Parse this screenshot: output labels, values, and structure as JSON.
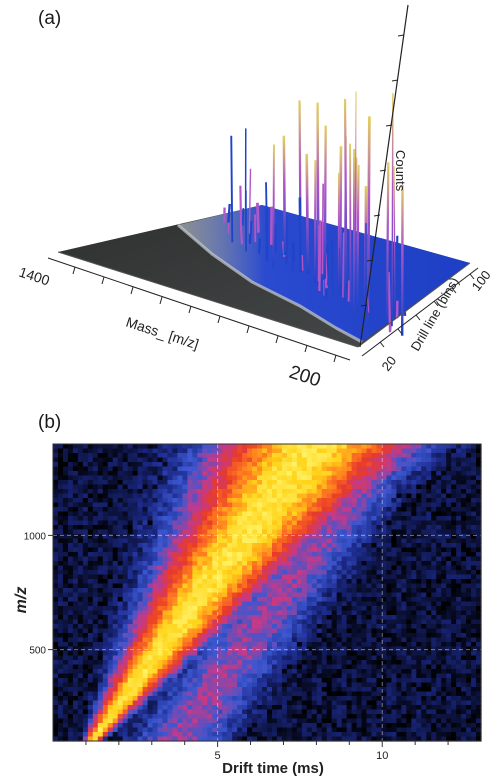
{
  "panels": {
    "a_label": "(a)",
    "b_label": "(b)"
  },
  "chart_data": [
    {
      "type": "surface3d",
      "panel": "(a)",
      "x_axis": {
        "label": "Mass_ [m/z]",
        "ticks": [
          1400,
          200
        ]
      },
      "y_axis": {
        "label": "Drill line (bins)",
        "ticks": [
          20,
          100
        ]
      },
      "z_axis": {
        "label": "Counts",
        "ticks": []
      },
      "colors": {
        "floor": "#3a3c3c",
        "band": "#1f44c8",
        "peak": "#b256c8",
        "tip": "#e2d060"
      }
    },
    {
      "type": "heatmap",
      "panel": "(b)",
      "xlabel": "Drift time (ms)",
      "ylabel": "m/z",
      "xticks": [
        5,
        10
      ],
      "yticks": [
        500,
        1000
      ],
      "xlim": [
        0,
        13
      ],
      "ylim": [
        100,
        1400
      ],
      "grid": true,
      "colormap": [
        "#000000",
        "#1c2a8a",
        "#3b57d0",
        "#c43a8a",
        "#e83a28",
        "#ff7a20",
        "#ffd41a",
        "#fff36a"
      ]
    }
  ]
}
